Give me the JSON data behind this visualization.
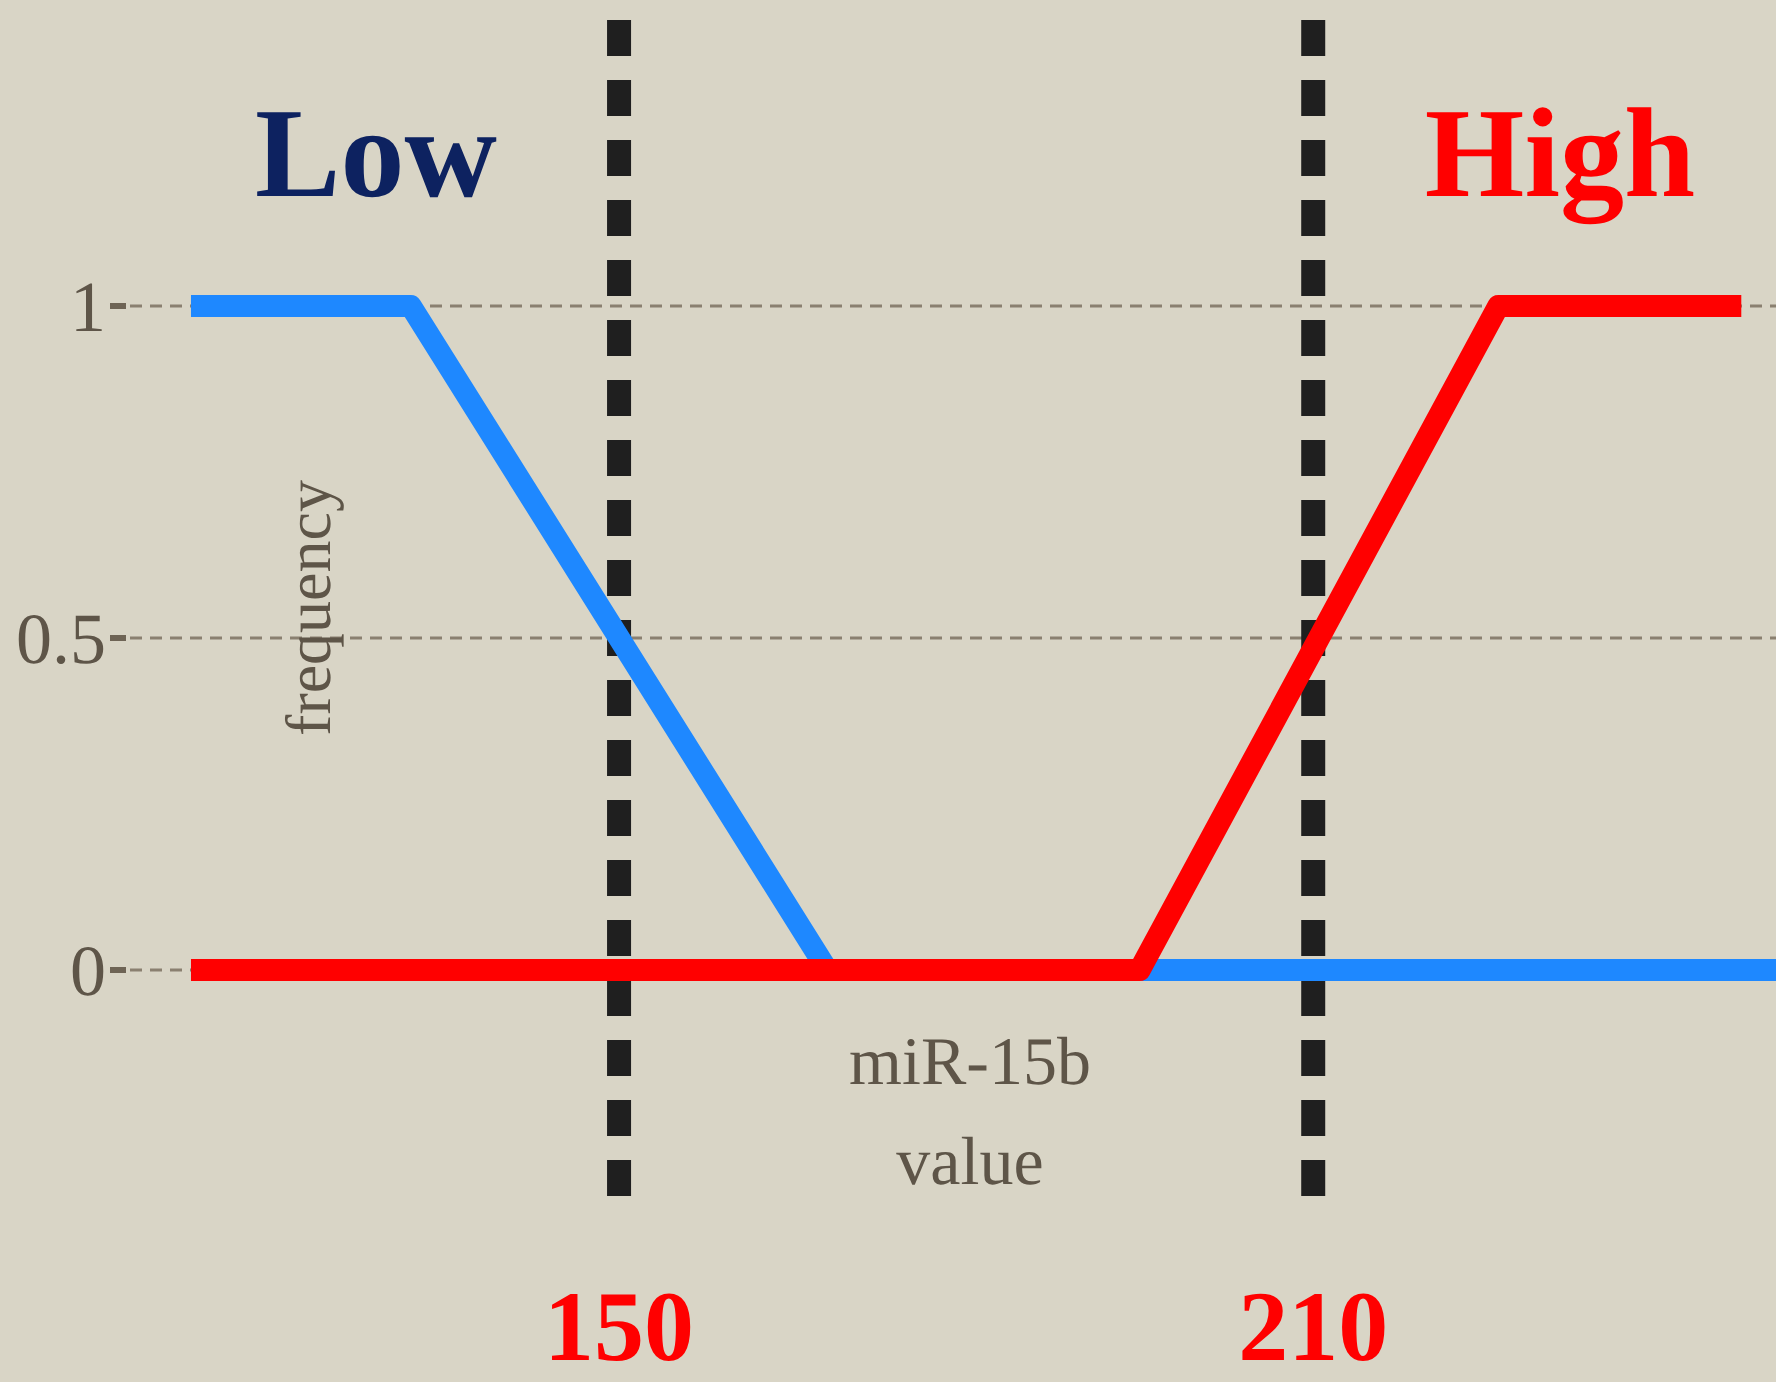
{
  "chart_data": {
    "type": "line",
    "xlabel": "miR-15b value",
    "ylabel": "frequency",
    "xlim": [
      106,
      250
    ],
    "ylim": [
      0,
      1
    ],
    "yticks": [
      0,
      0.5,
      1
    ],
    "tick_labels": "y",
    "grid": "y",
    "line_style": "solid",
    "marker": "none",
    "annotations": [
      "Low",
      "High"
    ],
    "series": [
      {
        "color": "#1e88ff",
        "x": [
          113,
          132,
          168,
          250
        ],
        "values": [
          1,
          1,
          0,
          0
        ]
      },
      {
        "color": "#ff0000",
        "x": [
          113,
          195,
          226,
          247
        ],
        "values": [
          0,
          0,
          1,
          1
        ]
      }
    ],
    "ref_lines": [
      {
        "axis": "x",
        "value": 150,
        "label": "150",
        "color": "#1f1f1f",
        "line_style": "dashed"
      },
      {
        "axis": "x",
        "value": 210,
        "label": "210",
        "color": "#1f1f1f",
        "line_style": "dashed"
      }
    ]
  }
}
